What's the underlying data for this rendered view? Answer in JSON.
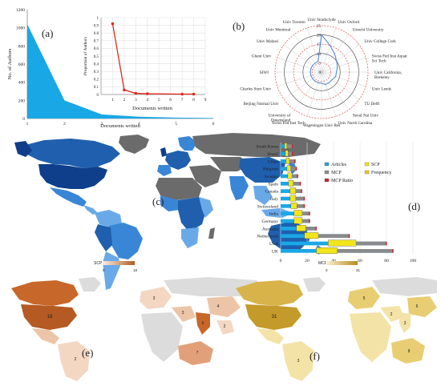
{
  "colors": {
    "area_fill": "#1aa7e6",
    "red_line": "#e0291f",
    "axis": "#555555",
    "map_blue_dark": "#1f5fae",
    "map_blue_mid": "#3a86d6",
    "map_blue_light": "#6aa9e8",
    "map_gray": "#6b6b6b",
    "map_light": "#dcdcdc",
    "orange_dark": "#c8672a",
    "orange_light": "#f3d7c3",
    "ochre_dark": "#c49a2a",
    "ochre_light": "#f3e3a6",
    "articles": "#1aa7e6",
    "scp": "#f2e51a",
    "mcp": "#8a8a8a",
    "mcp_ratio": "#d2222d"
  },
  "panel_labels": {
    "a": "(a)",
    "b": "(b)",
    "c": "(c)",
    "d": "(d)",
    "e": "(e)",
    "f": "(f)"
  },
  "chart_data": [
    {
      "id": "a-main",
      "type": "area",
      "ylabel": "No. of Authors",
      "xlabel": "Documents written",
      "x": [
        1,
        2,
        3,
        4,
        5,
        6
      ],
      "y": [
        1040,
        200,
        45,
        20,
        10,
        5
      ],
      "xlim": [
        1,
        6
      ],
      "ylim": [
        0,
        1200
      ],
      "yticks": [
        0,
        200,
        400,
        600,
        800,
        1000,
        1200
      ],
      "xticks": [
        1,
        2,
        3,
        4,
        5,
        6
      ]
    },
    {
      "id": "a-inset",
      "type": "line",
      "ylabel": "Proportion of Authors",
      "xlabel": "Documents written",
      "x": [
        1,
        2,
        3,
        4,
        7,
        8
      ],
      "y": [
        0.92,
        0.06,
        0.015,
        0.01,
        0.005,
        0.005
      ],
      "xlim": [
        0,
        9
      ],
      "ylim": [
        0,
        1
      ],
      "yticks": [
        0,
        0.1,
        0.2,
        0.3,
        0.4,
        0.5,
        0.6,
        0.7,
        0.8,
        0.9,
        1
      ],
      "xticks": [
        1,
        2,
        3,
        4,
        5,
        6,
        7,
        8,
        9
      ]
    },
    {
      "id": "b",
      "type": "radar",
      "rlim": [
        0,
        25
      ],
      "rticks": [
        0,
        5,
        10,
        15,
        20,
        25
      ],
      "categories": [
        "Univ Strathclyde",
        "Univ Oxford",
        "Utrecht University",
        "Univ College Cork",
        "Swiss Fed Inst Aquat Sci Tech",
        "Univ California, Berkeley",
        "Univ Leeds",
        "TU Delft",
        "Seoul Nat Univ",
        "Univ North Carolina",
        "Wageningen Univ Res",
        "Swiss Fed Inst Tech",
        "University of Queensland",
        "Beijing Normal Univ",
        "Charles Sturt Univ",
        "SIWI",
        "Ghent Univ",
        "Univ Malawi",
        "Univ Montreal",
        "Univ Toronto"
      ],
      "values": [
        20,
        15,
        12,
        10,
        9,
        8,
        8,
        7,
        7,
        7,
        6,
        6,
        6,
        6,
        6,
        6,
        6,
        6,
        6,
        6
      ]
    },
    {
      "id": "d",
      "type": "bar",
      "orientation": "horizontal",
      "categories": [
        "UK",
        "USA",
        "Netherlands",
        "Australia",
        "Germany",
        "India",
        "Switzerland",
        "Italy",
        "Canada",
        "Spain",
        "Sweden",
        "Belgium",
        "China",
        "Brazil",
        "South Korea"
      ],
      "series": [
        {
          "name": "Articles",
          "values": [
            85,
            80,
            52,
            27,
            22,
            22,
            18,
            18,
            16,
            15,
            13,
            12,
            11,
            9,
            9
          ]
        },
        {
          "name": "SCP",
          "values": [
            45,
            60,
            30,
            20,
            17,
            17,
            13,
            12,
            12,
            10,
            9,
            8,
            7,
            6,
            5
          ]
        },
        {
          "name": "MCP",
          "values": [
            42,
            20,
            22,
            7,
            5,
            5,
            5,
            6,
            4,
            5,
            4,
            4,
            4,
            3,
            4
          ]
        },
        {
          "name": "Frequency",
          "values": [
            45,
            60,
            30,
            20,
            17,
            17,
            13,
            12,
            12,
            10,
            9,
            8,
            7,
            6,
            5
          ]
        },
        {
          "name": "MCP Ratio",
          "values": [
            0.49,
            0.25,
            0.42,
            0.26,
            0.23,
            0.23,
            0.28,
            0.33,
            0.25,
            0.33,
            0.31,
            0.33,
            0.36,
            0.33,
            0.44
          ]
        }
      ],
      "xlim": [
        0,
        100
      ],
      "xticks": [
        0,
        20,
        40,
        60,
        80,
        100
      ]
    },
    {
      "id": "e",
      "type": "heatmap",
      "legend_title": "SCP",
      "legend_min": "0",
      "legend_max": "18",
      "labels": [
        "18",
        "3",
        "4",
        "6",
        "2",
        "7",
        "3",
        "2"
      ]
    },
    {
      "id": "f",
      "type": "heatmap",
      "legend_title": "MCP",
      "legend_min": "0",
      "legend_max": "31",
      "labels": [
        "31",
        "5",
        "6",
        "8",
        "3",
        "3",
        "2"
      ]
    }
  ]
}
